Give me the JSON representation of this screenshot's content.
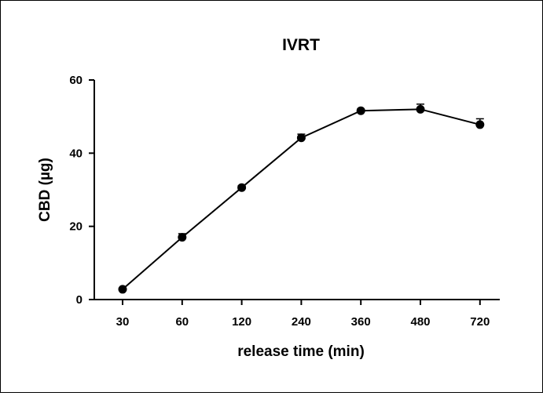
{
  "chart_data": {
    "type": "line",
    "title": "IVRT",
    "xlabel": "release time (min)",
    "ylabel": "CBD (µg)",
    "categories": [
      "30",
      "60",
      "120",
      "240",
      "360",
      "480",
      "720"
    ],
    "series": [
      {
        "values": [
          2.8,
          17.0,
          30.6,
          44.2,
          51.6,
          52.0,
          47.8
        ],
        "errors": [
          0.3,
          1.0,
          0.5,
          1.0,
          0.4,
          1.4,
          1.6
        ]
      }
    ],
    "ylim": [
      0,
      60
    ],
    "yticks": [
      "0",
      "20",
      "40",
      "60"
    ],
    "grid": false,
    "legend": "none",
    "colors": {
      "line": "#000000",
      "marker": "#000000",
      "axis": "#000000"
    }
  }
}
